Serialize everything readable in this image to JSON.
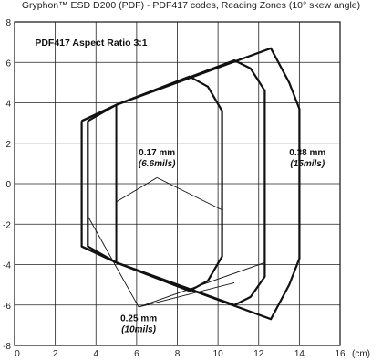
{
  "chart_data": {
    "type": "line",
    "title": "Gryphon™ ESD D200 (PDF) - PDF417 codes, Reading Zones (10° skew angle)",
    "subtitle": "PDF417 Aspect Ratio 3:1",
    "xlabel": "(cm)",
    "ylabel": "",
    "xlim": [
      0,
      16
    ],
    "ylim": [
      -8,
      8
    ],
    "x_ticks": [
      "0",
      "2",
      "4",
      "6",
      "8",
      "10",
      "12",
      "14",
      "16"
    ],
    "y_ticks": [
      "8",
      "6",
      "4",
      "2",
      "0",
      "-2",
      "-4",
      "-6",
      "-8"
    ],
    "grid": true,
    "series": [
      {
        "name": "0.17 mm (6.6mils)",
        "points": [
          [
            3.3,
            3.1
          ],
          [
            5.0,
            3.9
          ],
          [
            8.6,
            5.3
          ],
          [
            9.5,
            4.8
          ],
          [
            10.2,
            3.6
          ],
          [
            10.2,
            -3.6
          ],
          [
            9.5,
            -4.8
          ],
          [
            8.6,
            -5.3
          ],
          [
            5.0,
            -3.9
          ],
          [
            3.3,
            -3.1
          ],
          [
            3.3,
            3.1
          ]
        ]
      },
      {
        "name": "",
        "points": [
          [
            3.6,
            3.1
          ],
          [
            5.0,
            3.9
          ],
          [
            10.8,
            6.1
          ],
          [
            11.6,
            5.7
          ],
          [
            12.3,
            4.6
          ],
          [
            12.3,
            -4.6
          ],
          [
            11.6,
            -5.6
          ],
          [
            10.8,
            -6.0
          ],
          [
            5.0,
            -3.9
          ],
          [
            3.6,
            -3.1
          ],
          [
            3.6,
            3.1
          ]
        ]
      },
      {
        "name": "0.38 mm (15mils)",
        "points": [
          [
            3.3,
            3.1
          ],
          [
            5.0,
            3.9
          ],
          [
            12.6,
            6.7
          ],
          [
            13.5,
            5.0
          ],
          [
            14.0,
            3.7
          ],
          [
            14.0,
            -3.7
          ],
          [
            13.5,
            -5.0
          ],
          [
            12.6,
            -6.7
          ],
          [
            5.0,
            -3.9
          ],
          [
            3.3,
            -3.1
          ]
        ]
      }
    ],
    "annotations": [
      {
        "label_line1": "0.17 mm",
        "label_line2": "(6.6mils)",
        "x": 7.0,
        "y": 1.3
      },
      {
        "label_line1": "0.38 mm",
        "label_line2": "(15mils)",
        "x": 14.4,
        "y": 1.3
      },
      {
        "label_line1": "0.25 mm",
        "label_line2": "(10mils)",
        "x": 6.1,
        "y": -6.9
      }
    ],
    "leader_lines": [
      [
        [
          7.0,
          0.3
        ],
        [
          5.0,
          -0.9
        ]
      ],
      [
        [
          7.0,
          0.3
        ],
        [
          10.2,
          -1.3
        ]
      ],
      [
        [
          6.1,
          -6.1
        ],
        [
          3.6,
          -1.6
        ]
      ],
      [
        [
          6.1,
          -6.1
        ],
        [
          10.8,
          -4.9
        ]
      ],
      [
        [
          6.1,
          -6.1
        ],
        [
          12.3,
          -3.9
        ]
      ]
    ]
  }
}
